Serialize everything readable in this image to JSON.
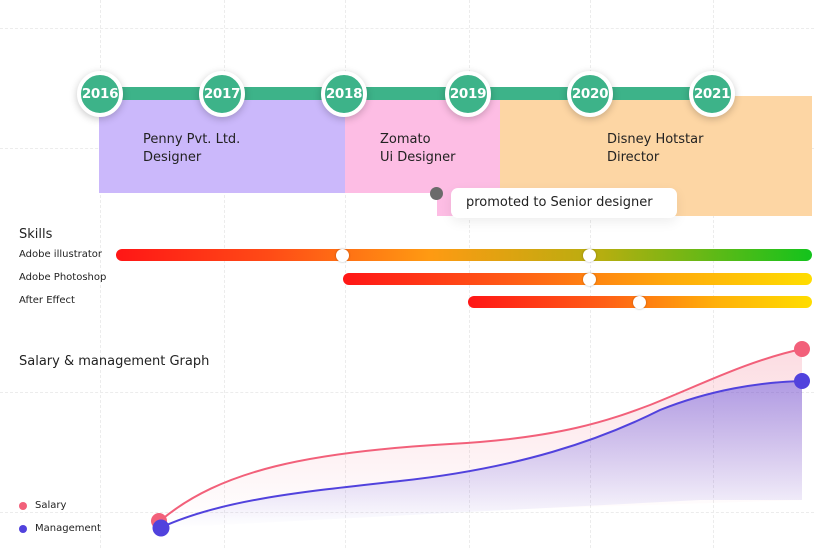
{
  "timeline": {
    "years": [
      "2016",
      "2017",
      "2018",
      "2019",
      "2020",
      "2021"
    ],
    "jobs": [
      {
        "company": "Penny Pvt. Ltd.",
        "role": "Designer",
        "color": "#cbb8fb"
      },
      {
        "company": "Zomato",
        "role": "Ui Designer",
        "color": "#fdbde4"
      },
      {
        "company": "Disney Hotstar",
        "role": "Director",
        "color": "#fdd6a4"
      }
    ],
    "accent": "#3db389",
    "promotion": "promoted to Senior designer"
  },
  "skills": {
    "title": "Skills",
    "items": [
      {
        "name": "Adobe illustrator"
      },
      {
        "name": "Adobe Photoshop"
      },
      {
        "name": "After Effect"
      }
    ]
  },
  "graph": {
    "title": "Salary & management Graph",
    "legend": [
      {
        "label": "Salary",
        "color": "#f2607a"
      },
      {
        "label": "Management",
        "color": "#5142dd"
      }
    ]
  }
}
